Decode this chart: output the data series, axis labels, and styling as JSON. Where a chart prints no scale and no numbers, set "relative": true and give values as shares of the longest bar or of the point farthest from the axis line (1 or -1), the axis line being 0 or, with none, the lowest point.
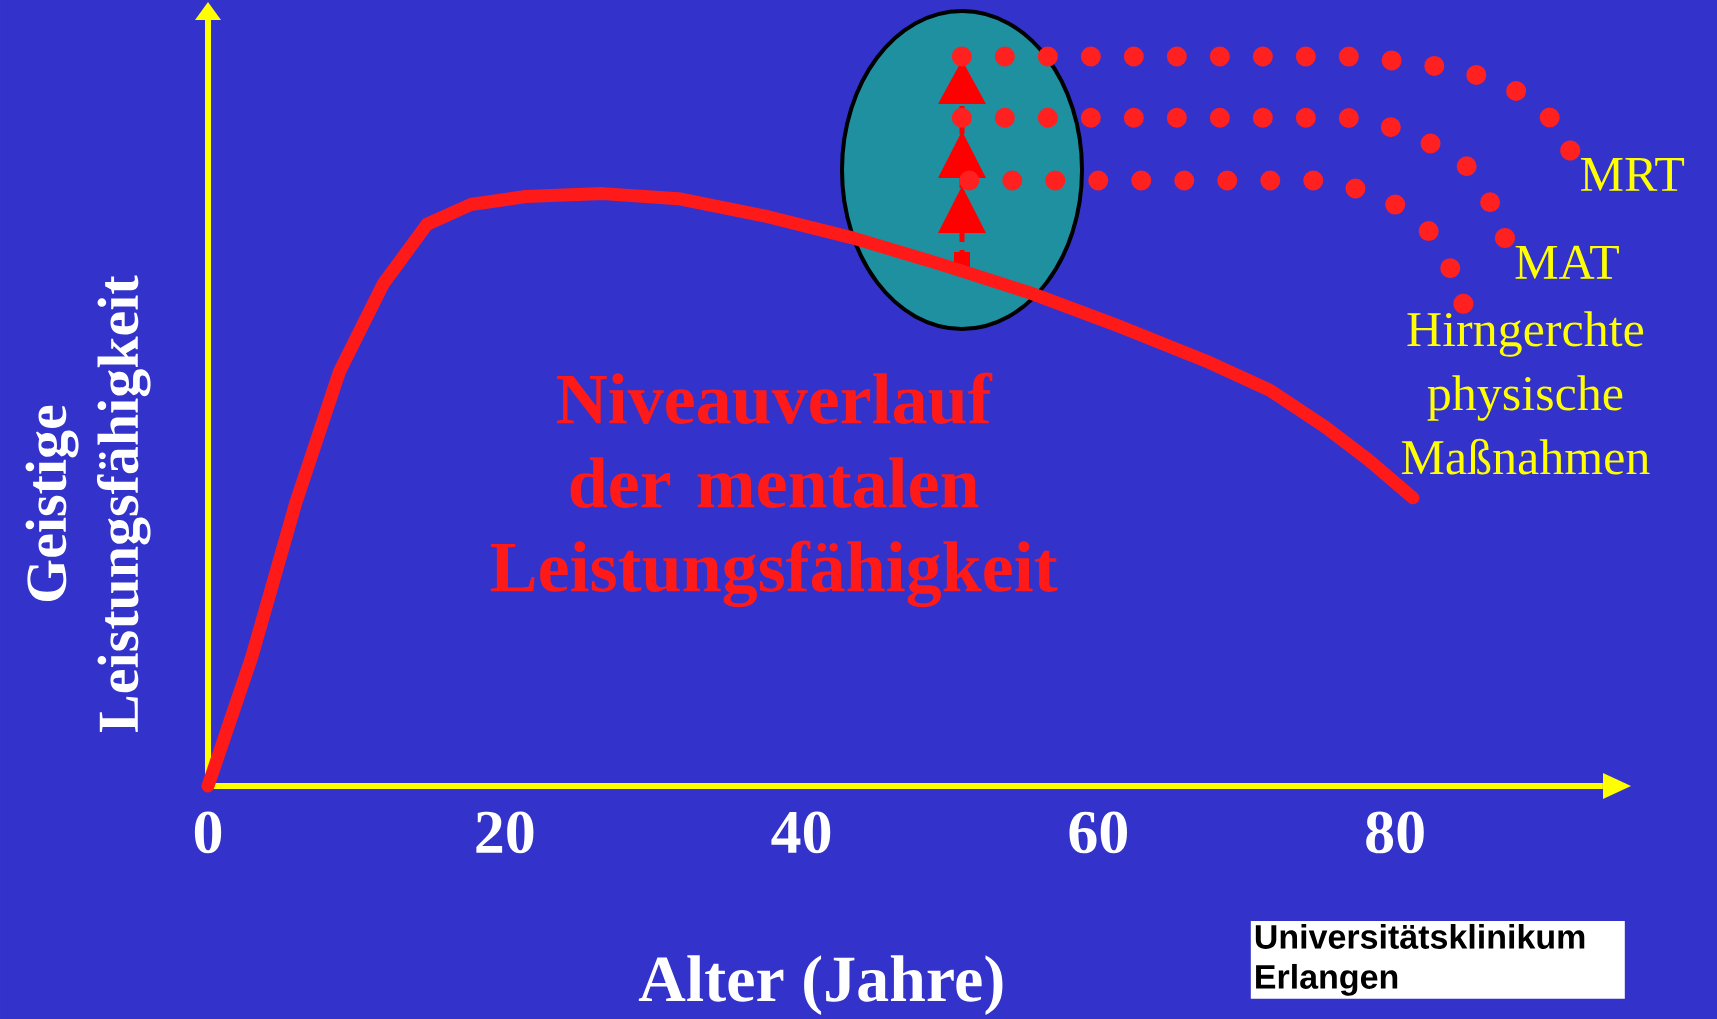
{
  "chart_data": {
    "type": "line",
    "relative": true,
    "xlabel": "Alter (Jahre)",
    "ylabel": "Geistige Leistungsfähigkeit",
    "xlim": [
      0,
      94
    ],
    "xticks": [
      0,
      20,
      40,
      60,
      80
    ],
    "tick_labels": "x",
    "legend": false,
    "annotations": [
      "Universitätsklinikum Erlangen"
    ],
    "series": [
      {
        "name": "Niveauverlauf der mentalen Leistungsfähigkeit",
        "color": "#ff1a1a",
        "line_style": "solid",
        "x": [
          0,
          2.95,
          5.9,
          8.86,
          11.8,
          14.76,
          17.7,
          21.4,
          26.6,
          31.7,
          37.6,
          43.5,
          49.4,
          55.4,
          61.3,
          67.2,
          71.6,
          75.3,
          78.2,
          81.2
        ],
        "values": [
          0,
          0.177,
          0.387,
          0.568,
          0.688,
          0.77,
          0.797,
          0.808,
          0.812,
          0.805,
          0.781,
          0.751,
          0.715,
          0.676,
          0.631,
          0.583,
          0.542,
          0.492,
          0.447,
          0.395
        ]
      },
      {
        "name": "MRT",
        "color": "#ff2020",
        "line_style": "dotted",
        "x": [
          50.8,
          76.8,
          79.6,
          82.4,
          85.3,
          88.0,
          90.3,
          91.8
        ],
        "values": [
          1.0,
          1.0,
          0.995,
          0.988,
          0.976,
          0.955,
          0.92,
          0.871
        ]
      },
      {
        "name": "MAT",
        "color": "#ff2020",
        "line_style": "dotted",
        "x": [
          50.8,
          76.8,
          79.6,
          82.2,
          84.7,
          86.3,
          87.4
        ],
        "values": [
          0.916,
          0.916,
          0.904,
          0.883,
          0.853,
          0.805,
          0.751
        ]
      },
      {
        "name": "Hirngerchte physische Maßnahmen",
        "color": "#ff2020",
        "line_style": "dotted",
        "x": [
          51.3,
          74.5,
          77.2,
          79.8,
          82.1,
          83.6,
          84.6
        ],
        "values": [
          0.83,
          0.83,
          0.82,
          0.8,
          0.766,
          0.716,
          0.661
        ]
      }
    ]
  }
}
